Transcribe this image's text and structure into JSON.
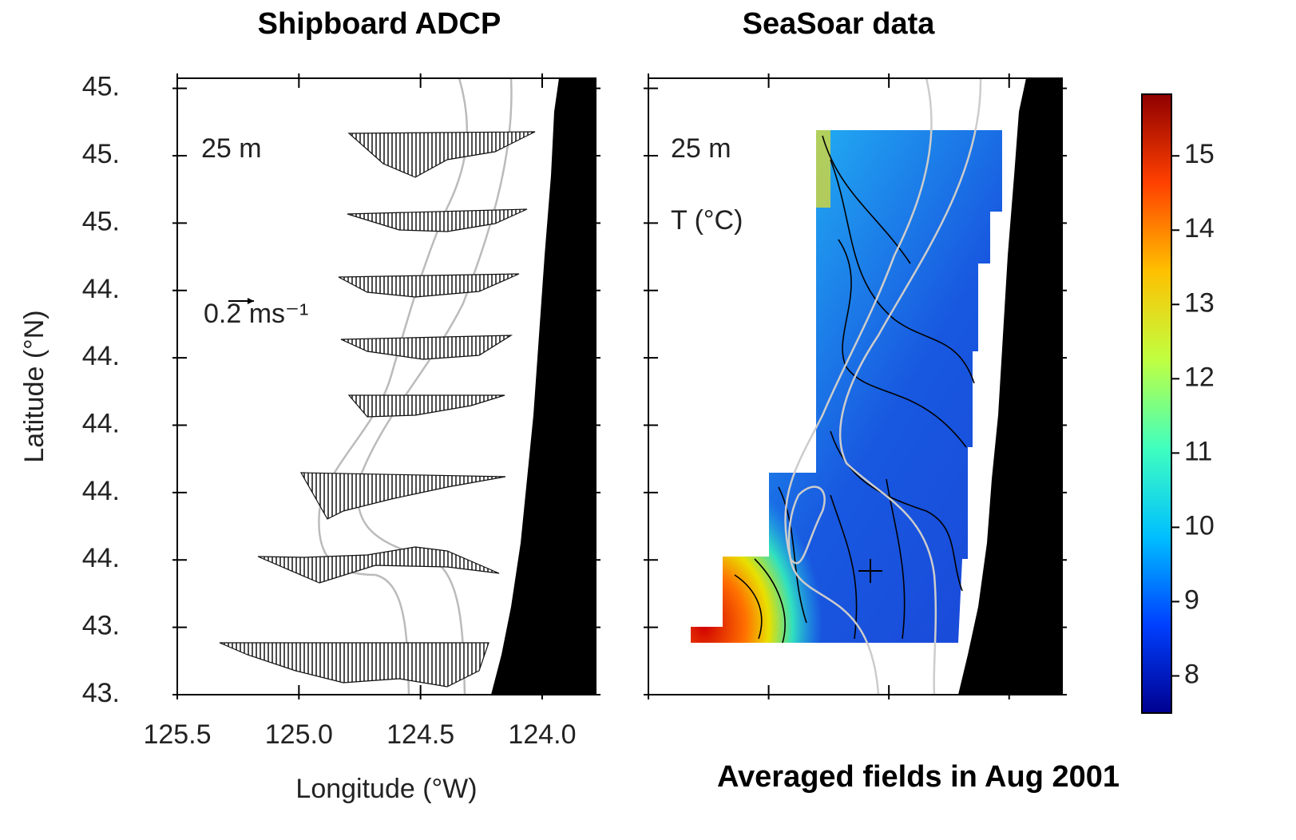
{
  "chart_data": [
    {
      "type": "map",
      "title": "Shipboard ADCP",
      "depth_label": "25 m",
      "scale_label": "0.2 ms⁻¹",
      "x_label": "Longitude (°W)",
      "y_label": "Latitude (°N)",
      "tick_labels": true,
      "xlim": [
        125.5,
        123.78
      ],
      "ylim": [
        43.6,
        45.43
      ],
      "xticks": [
        125.5,
        {
          "value": 125,
          "label": "125.0"
        },
        124.5,
        {
          "value": 124,
          "label": "124.0"
        }
      ],
      "yticks": [
        {
          "value": 45.4,
          "label": "45."
        },
        {
          "value": 45.2,
          "label": "45."
        },
        {
          "value": 45,
          "label": "45."
        },
        {
          "value": 44.8,
          "label": "44."
        },
        {
          "value": 44.6,
          "label": "44."
        },
        {
          "value": 44.4,
          "label": "44."
        },
        {
          "value": 44.2,
          "label": "44."
        },
        {
          "value": 44,
          "label": "44."
        },
        {
          "value": 43.8,
          "label": "43."
        },
        {
          "value": 43.6,
          "label": "43."
        }
      ]
    },
    {
      "type": "map",
      "title": "SeaSoar data",
      "depth_label": "25 m",
      "field_label": "T (°C)",
      "tick_labels": false,
      "xlim": [
        125.5,
        123.78
      ],
      "ylim": [
        43.6,
        45.43
      ],
      "xticks": [
        125.5,
        125,
        124.5,
        124
      ],
      "yticks": [
        45.4,
        45.2,
        45,
        44.8,
        44.6,
        44.4,
        44.2,
        44,
        43.8,
        43.6
      ]
    },
    {
      "type": "colorbar",
      "caption": "Averaged fields in Aug 2001",
      "clim": [
        7.5,
        15.83
      ],
      "ticks": [
        8,
        9,
        10,
        11,
        12,
        13,
        14,
        15
      ],
      "colors": [
        "#00008f",
        "#0040ff",
        "#00c0ff",
        "#40ffbf",
        "#c0ff40",
        "#ffc000",
        "#ff4000",
        "#8f0000"
      ]
    }
  ]
}
